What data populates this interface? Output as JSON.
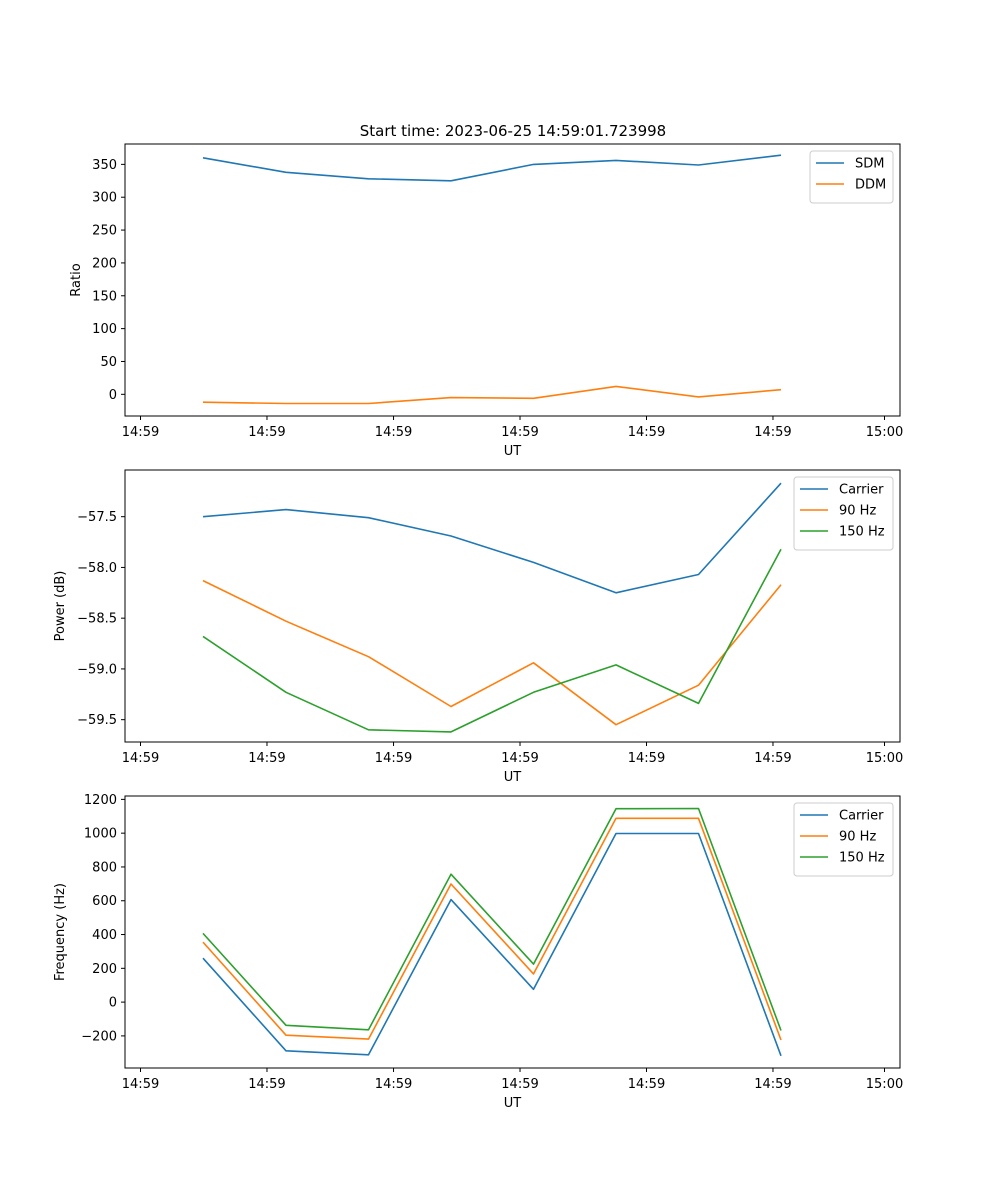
{
  "figure": {
    "title": "Start time: 2023-06-25 14:59:01.723998"
  },
  "chart_data": [
    {
      "type": "line",
      "title": "Start time: 2023-06-25 14:59:01.723998",
      "xlabel": "UT",
      "ylabel": "Ratio",
      "x_tick_labels": [
        "14:59",
        "14:59",
        "14:59",
        "14:59",
        "14:59",
        "14:59",
        "15:00"
      ],
      "ylim": [
        -33,
        381
      ],
      "y_ticks": [
        0,
        50,
        100,
        150,
        200,
        250,
        300,
        350
      ],
      "y_tick_labels": [
        "0",
        "50",
        "100",
        "150",
        "200",
        "250",
        "300",
        "350"
      ],
      "legend_position": "upper right",
      "grid": false,
      "series": [
        {
          "name": "SDM",
          "color": "#1f77b4",
          "values": [
            360,
            338,
            328,
            325,
            350,
            356,
            349,
            364
          ]
        },
        {
          "name": "DDM",
          "color": "#ff7f0e",
          "values": [
            -12,
            -14,
            -14,
            -5,
            -6,
            12,
            -4,
            7
          ]
        }
      ]
    },
    {
      "type": "line",
      "xlabel": "UT",
      "ylabel": "Power (dB)",
      "x_tick_labels": [
        "14:59",
        "14:59",
        "14:59",
        "14:59",
        "14:59",
        "14:59",
        "15:00"
      ],
      "ylim": [
        -59.72,
        -57.04
      ],
      "y_ticks": [
        -59.5,
        -59.0,
        -58.5,
        -58.0,
        -57.5
      ],
      "y_tick_labels": [
        "−59.5",
        "−59.0",
        "−58.5",
        "−58.0",
        "−57.5"
      ],
      "legend_position": "upper right",
      "grid": false,
      "series": [
        {
          "name": "Carrier",
          "color": "#1f77b4",
          "values": [
            -57.5,
            -57.43,
            -57.51,
            -57.69,
            -57.95,
            -58.25,
            -58.07,
            -57.17
          ]
        },
        {
          "name": "90 Hz",
          "color": "#ff7f0e",
          "values": [
            -58.13,
            -58.53,
            -58.88,
            -59.37,
            -58.94,
            -59.55,
            -59.16,
            -58.17
          ]
        },
        {
          "name": "150 Hz",
          "color": "#2ca02c",
          "values": [
            -58.68,
            -59.23,
            -59.6,
            -59.62,
            -59.23,
            -58.96,
            -59.34,
            -57.82
          ]
        }
      ]
    },
    {
      "type": "line",
      "xlabel": "UT",
      "ylabel": "Frequency (Hz)",
      "x_tick_labels": [
        "14:59",
        "14:59",
        "14:59",
        "14:59",
        "14:59",
        "14:59",
        "15:00"
      ],
      "ylim": [
        -390,
        1220
      ],
      "y_ticks": [
        -200,
        0,
        200,
        400,
        600,
        800,
        1000,
        1200
      ],
      "y_tick_labels": [
        "−200",
        "0",
        "200",
        "400",
        "600",
        "800",
        "1000",
        "1200"
      ],
      "legend_position": "upper right",
      "grid": false,
      "series": [
        {
          "name": "Carrier",
          "color": "#1f77b4",
          "values": [
            260,
            -288,
            -312,
            607,
            76,
            998,
            998,
            -318
          ]
        },
        {
          "name": "90 Hz",
          "color": "#ff7f0e",
          "values": [
            355,
            -196,
            -219,
            699,
            167,
            1088,
            1088,
            -224
          ]
        },
        {
          "name": "150 Hz",
          "color": "#2ca02c",
          "values": [
            407,
            -137,
            -164,
            757,
            225,
            1145,
            1146,
            -168
          ]
        }
      ]
    }
  ]
}
